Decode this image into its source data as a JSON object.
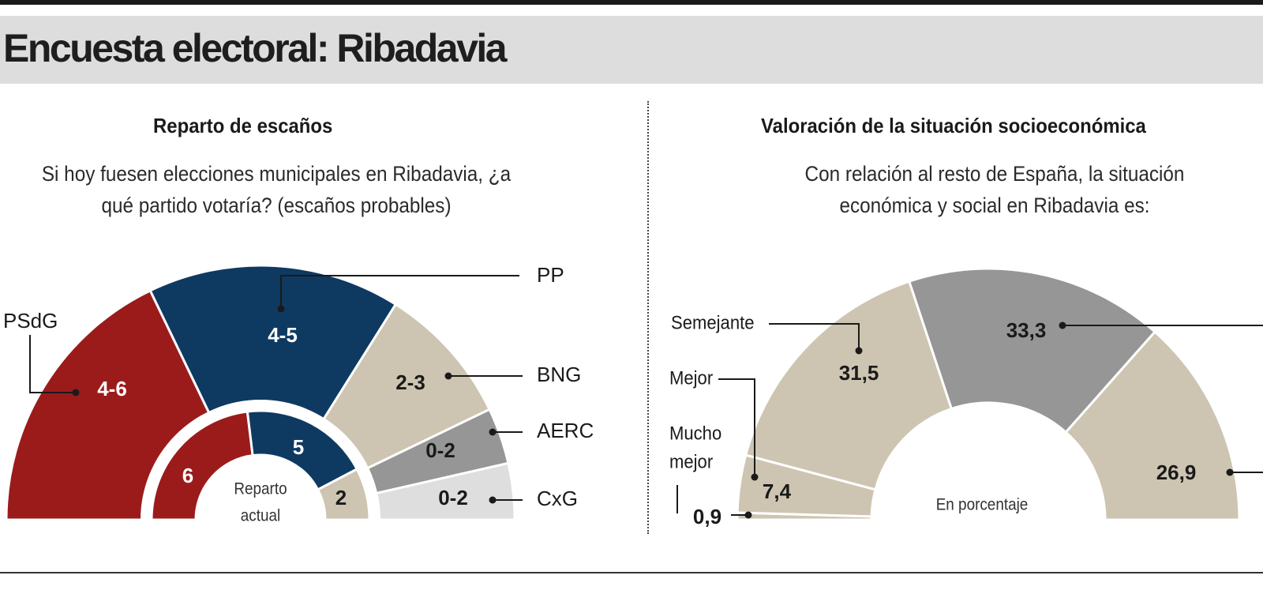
{
  "title": "Encuesta electoral: Ribadavia",
  "left": {
    "heading": "Reparto de escaños",
    "question_line1": "Si hoy fuesen elecciones municipales en Ribadavia, ¿a",
    "question_line2": "qué partido votaría? (escaños probables)",
    "center_label_line1": "Reparto",
    "center_label_line2": "actual"
  },
  "right": {
    "heading": "Valoración de la situación socioeconómica",
    "question_line1": "Con relación al resto de España, la situación",
    "question_line2": "económica y social en Ribadavia es:",
    "center_label": "En porcentaje"
  },
  "colors": {
    "psdg": "#9b1b1b",
    "pp": "#0e3a62",
    "bng": "#cdc5b1",
    "aerc": "#969696",
    "cxg": "#dedede",
    "tan": "#cdc5b1",
    "grey": "#969696"
  },
  "chart_data": [
    {
      "type": "pie",
      "variant": "semicircle-donut",
      "title": "Reparto de escaños",
      "outer_ring": {
        "label": "Escaños probables",
        "segments": [
          {
            "name": "PSdG",
            "value_label": "4-6",
            "value": 5
          },
          {
            "name": "PP",
            "value_label": "4-5",
            "value": 4.5
          },
          {
            "name": "BNG",
            "value_label": "2-3",
            "value": 2.5
          },
          {
            "name": "AERC",
            "value_label": "0-2",
            "value": 1
          },
          {
            "name": "CxG",
            "value_label": "0-2",
            "value": 1
          }
        ]
      },
      "inner_ring": {
        "label": "Reparto actual",
        "segments": [
          {
            "name": "PSdG",
            "value_label": "6",
            "value": 6
          },
          {
            "name": "PP",
            "value_label": "5",
            "value": 5
          },
          {
            "name": "BNG",
            "value_label": "2",
            "value": 2
          }
        ]
      }
    },
    {
      "type": "pie",
      "variant": "semicircle-donut",
      "title": "Valoración de la situación socioeconómica",
      "unit": "En porcentaje",
      "segments": [
        {
          "name": "Mucho mejor",
          "value": 0.9,
          "value_label": "0,9"
        },
        {
          "name": "Mejor",
          "value": 7.4,
          "value_label": "7,4"
        },
        {
          "name": "Semejante",
          "value": 31.5,
          "value_label": "31,5"
        },
        {
          "name": "",
          "value": 33.3,
          "value_label": "33,3"
        },
        {
          "name": "",
          "value": 26.9,
          "value_label": "26,9"
        }
      ]
    }
  ]
}
